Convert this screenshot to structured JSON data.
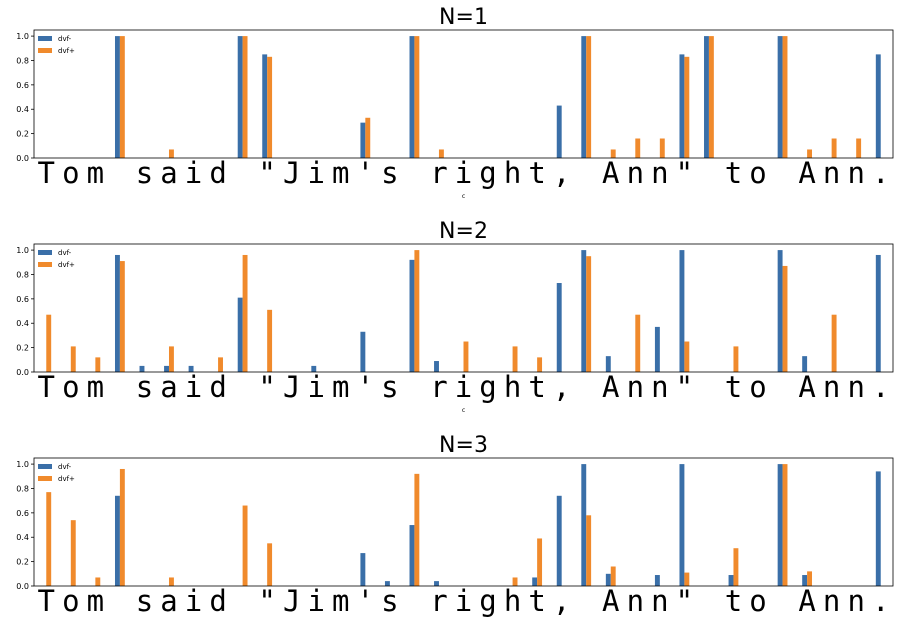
{
  "chart_data": [
    {
      "type": "bar",
      "title": "N=1",
      "xlabel": "c",
      "ylabel": "",
      "ylim": [
        0,
        1.05
      ],
      "yticks": [
        "0.0",
        "0.2",
        "0.4",
        "0.6",
        "0.8",
        "1.0"
      ],
      "categories": [
        "T",
        "o",
        "m",
        " ",
        "s",
        "a",
        "i",
        "d",
        " ",
        "\"",
        "J",
        "i",
        "m",
        "'",
        "s",
        " ",
        "r",
        "i",
        "g",
        "h",
        "t",
        ",",
        " ",
        "A",
        "n",
        "n",
        "\"",
        " ",
        "t",
        "o",
        " ",
        "A",
        "n",
        "n",
        "."
      ],
      "legend_loc": "upper-left",
      "series": [
        {
          "name": "dvf-",
          "color": "#3a6fa8",
          "values": [
            0,
            0,
            0,
            1.0,
            0,
            0,
            0,
            0,
            1.0,
            0.85,
            0,
            0,
            0,
            0.29,
            0,
            1.0,
            0,
            0,
            0,
            0,
            0,
            0.43,
            1.0,
            0,
            0,
            0,
            0.85,
            1.0,
            0,
            0,
            1.0,
            0,
            0,
            0,
            0.85
          ]
        },
        {
          "name": "dvf+",
          "color": "#f08a2c",
          "values": [
            0,
            0,
            0,
            1.0,
            0,
            0.07,
            0,
            0,
            1.0,
            0.83,
            0,
            0,
            0,
            0.33,
            0,
            1.0,
            0.07,
            0,
            0,
            0,
            0,
            0,
            1.0,
            0.07,
            0.16,
            0.16,
            0.83,
            1.0,
            0,
            0,
            1.0,
            0.07,
            0.16,
            0.16,
            0
          ]
        }
      ]
    },
    {
      "type": "bar",
      "title": "N=2",
      "xlabel": "c",
      "ylabel": "",
      "ylim": [
        0,
        1.05
      ],
      "yticks": [
        "0.0",
        "0.2",
        "0.4",
        "0.6",
        "0.8",
        "1.0"
      ],
      "categories": [
        "T",
        "o",
        "m",
        " ",
        "s",
        "a",
        "i",
        "d",
        " ",
        "\"",
        "J",
        "i",
        "m",
        "'",
        "s",
        " ",
        "r",
        "i",
        "g",
        "h",
        "t",
        ",",
        " ",
        "A",
        "n",
        "n",
        "\"",
        " ",
        "t",
        "o",
        " ",
        "A",
        "n",
        "n",
        "."
      ],
      "legend_loc": "upper-left",
      "series": [
        {
          "name": "dvf-",
          "color": "#3a6fa8",
          "values": [
            0,
            0,
            0,
            0.96,
            0.05,
            0.05,
            0.05,
            0,
            0.61,
            0,
            0,
            0.05,
            0,
            0.33,
            0,
            0.92,
            0.09,
            0,
            0,
            0,
            0,
            0.73,
            1.0,
            0.13,
            0,
            0.37,
            1.0,
            0,
            0,
            0,
            1.0,
            0.13,
            0,
            0,
            0.96
          ]
        },
        {
          "name": "dvf+",
          "color": "#f08a2c",
          "values": [
            0.47,
            0.21,
            0.12,
            0.91,
            0,
            0.21,
            0,
            0.12,
            0.96,
            0.51,
            0,
            0,
            0,
            0,
            0,
            1.0,
            0,
            0.25,
            0,
            0.21,
            0.12,
            0,
            0.95,
            0,
            0.47,
            0,
            0.25,
            0,
            0.21,
            0,
            0.87,
            0,
            0.47,
            0,
            0
          ]
        }
      ]
    },
    {
      "type": "bar",
      "title": "N=3",
      "xlabel": "c",
      "ylabel": "",
      "ylim": [
        0,
        1.05
      ],
      "yticks": [
        "0.0",
        "0.2",
        "0.4",
        "0.6",
        "0.8",
        "1.0"
      ],
      "categories": [
        "T",
        "o",
        "m",
        " ",
        "s",
        "a",
        "i",
        "d",
        " ",
        "\"",
        "J",
        "i",
        "m",
        "'",
        "s",
        " ",
        "r",
        "i",
        "g",
        "h",
        "t",
        ",",
        " ",
        "A",
        "n",
        "n",
        "\"",
        " ",
        "t",
        "o",
        " ",
        "A",
        "n",
        "n",
        "."
      ],
      "legend_loc": "upper-left",
      "series": [
        {
          "name": "dvf-",
          "color": "#3a6fa8",
          "values": [
            0,
            0,
            0,
            0.74,
            0,
            0,
            0,
            0,
            0,
            0,
            0,
            0,
            0,
            0.27,
            0.04,
            0.5,
            0.04,
            0,
            0,
            0,
            0.07,
            0.74,
            1.0,
            0.1,
            0,
            0.09,
            1.0,
            0,
            0.09,
            0,
            1.0,
            0.09,
            0,
            0,
            0.94
          ]
        },
        {
          "name": "dvf+",
          "color": "#f08a2c",
          "values": [
            0.77,
            0.54,
            0.07,
            0.96,
            0,
            0.07,
            0,
            0,
            0.66,
            0.35,
            0,
            0,
            0,
            0,
            0,
            0.92,
            0,
            0,
            0,
            0.07,
            0.39,
            0,
            0.58,
            0.16,
            0,
            0,
            0.11,
            0,
            0.31,
            0,
            1.0,
            0.12,
            0,
            0,
            0
          ]
        }
      ]
    }
  ]
}
